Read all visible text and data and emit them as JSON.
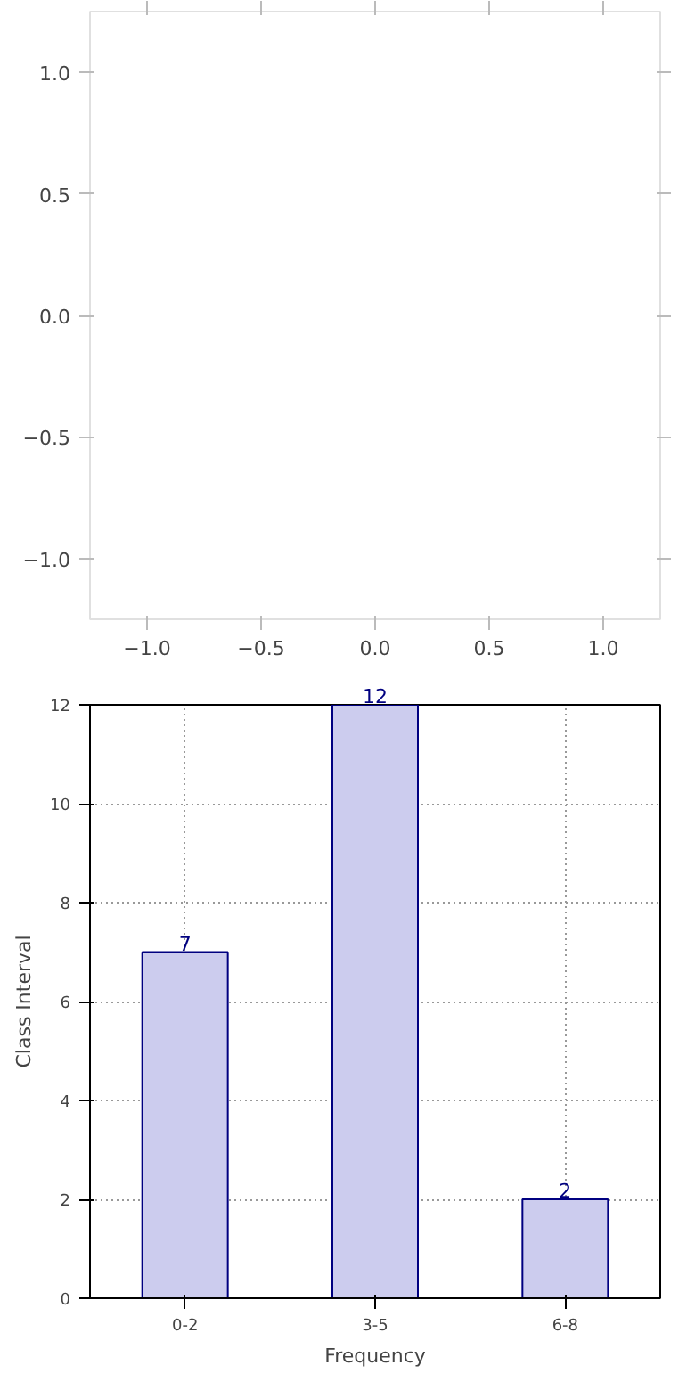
{
  "chart_data": [
    {
      "type": "scatter",
      "xlim": [
        -1.25,
        1.25
      ],
      "ylim": [
        -1.25,
        1.25
      ],
      "xticks": [
        {
          "value": -1.0,
          "label": "−1.0"
        },
        {
          "value": -0.5,
          "label": "−0.5"
        },
        {
          "value": 0.0,
          "label": "0.0"
        },
        {
          "value": 0.5,
          "label": "0.5"
        },
        {
          "value": 1.0,
          "label": "1.0"
        }
      ],
      "yticks": [
        {
          "value": -1.0,
          "label": "−1.0"
        },
        {
          "value": -0.5,
          "label": "−0.5"
        },
        {
          "value": 0.0,
          "label": "0.0"
        },
        {
          "value": 0.5,
          "label": "0.5"
        },
        {
          "value": 1.0,
          "label": "1.0"
        }
      ],
      "grid": false
    },
    {
      "type": "bar",
      "categories": [
        "0-2",
        "3-5",
        "6-8"
      ],
      "values": [
        7,
        12,
        2
      ],
      "color": "#ccccee",
      "xlabel": "Frequency",
      "ylabel": "Class Interval",
      "ylim": [
        0,
        12
      ],
      "yticks": [
        0,
        2,
        4,
        6,
        8,
        10,
        12
      ],
      "grid": true,
      "data_labels": true
    }
  ]
}
